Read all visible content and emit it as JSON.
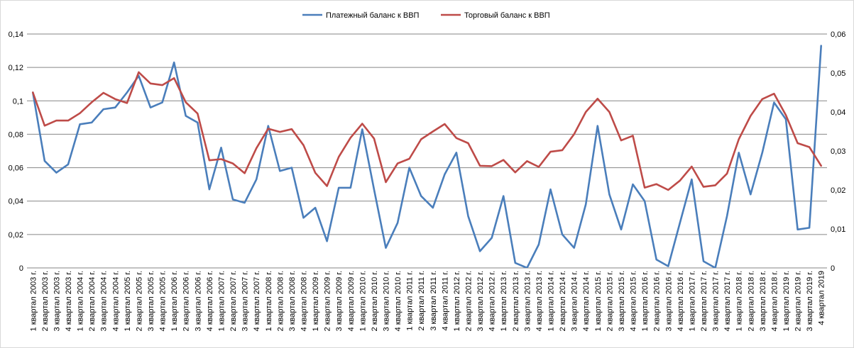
{
  "chart_data": {
    "type": "line",
    "title": "",
    "xlabel": "",
    "ylabel": "",
    "grid": true,
    "legend_position": "top",
    "categories": [
      "1 квартал 2003 г.",
      "2 квартал 2003 г.",
      "3 квартал 2003 г.",
      "4 квартал 2003 г.",
      "1 квартал 2004 г.",
      "2 квартал 2004 г.",
      "3 квартал 2004 г.",
      "4 квартал 2004 г.",
      "1 квартал 2005 г.",
      "2 квартал 2005 г.",
      "3 квартал 2005 г.",
      "4 квартал 2005 г.",
      "1 квартал 2006 г.",
      "2 квартал 2006 г.",
      "3 квартал 2006 г.",
      "4 квартал 2006 г.",
      "1 квартал 2007 г.",
      "2 квартал 2007 г.",
      "3 квартал 2007 г.",
      "4 квартал 2007 г.",
      "1 квартал 2008 г.",
      "2 квартал 2008 г.",
      "3 квартал 2008 г.",
      "4 квартал 2008 г.",
      "1 квартал 2009 г.",
      "2 квартал 2009 г.",
      "3 квартал 2009 г.",
      "4 квартал 2009 г.",
      "1 квартал 2010 г.",
      "2 квартал 2010 г.",
      "3 квартал 2010 г.",
      "4 квартал 2010 г.",
      "1 квартал 2011 г.",
      "2 квартал 2011 г.",
      "3 квартал 2011 г.",
      "4 квартал 2011 г.",
      "1 квартал 2012 г.",
      "2 квартал 2012 г.",
      "3 квартал 2012 г.",
      "4 квартал 2012 г.",
      "1 квартал 2013 г.",
      "2 квартал 2013 г.",
      "3 квартал 2013 г.",
      "4 квартал 2013 г.",
      "1 квартал 2014 г.",
      "2 квартал 2014 г.",
      "3 квартал 2014 г.",
      "4 квартал 2014 г.",
      "1 квартал 2015 г.",
      "2 квартал 2015 г.",
      "3 квартал 2015 г.",
      "4 квартал 2015 г.",
      "1 квартал 2016 г.",
      "2 квартал 2016 г.",
      "3 квартал 2016 г.",
      "4 квартал 2016 г.",
      "1 квартал 2017 г.",
      "2 квартал 2017 г.",
      "3 квартал 2017 г.",
      "4 квартал 2017 г.",
      "1 квартал 2018 г.",
      "2 квартал 2018 г.",
      "3 квартал 2018 г.",
      "4 квартал 2018 г.",
      "1 квартал 2019 г.",
      "2 квартал 2019 г.",
      "3 квартал 2019 г.",
      "4 квартал 2019"
    ],
    "y_left": {
      "min": 0,
      "max": 0.14,
      "ticks": [
        "0",
        "0,02",
        "0,04",
        "0,06",
        "0,08",
        "0,1",
        "0,12",
        "0,14"
      ]
    },
    "y_right": {
      "min": 0,
      "max": 0.06,
      "ticks": [
        "0",
        "0,01",
        "0,02",
        "0,03",
        "0,04",
        "0,05",
        "0,06"
      ]
    },
    "series": [
      {
        "name": "Платежный баланс к ВВП",
        "axis": "left",
        "color": "#4a7ebb",
        "values": [
          0.105,
          0.064,
          0.057,
          0.062,
          0.086,
          0.087,
          0.095,
          0.096,
          0.105,
          0.115,
          0.096,
          0.099,
          0.123,
          0.091,
          0.087,
          0.047,
          0.072,
          0.041,
          0.039,
          0.053,
          0.085,
          0.058,
          0.06,
          0.03,
          0.036,
          0.016,
          0.048,
          0.048,
          0.083,
          0.047,
          0.012,
          0.027,
          0.06,
          0.043,
          0.036,
          0.056,
          0.069,
          0.031,
          0.01,
          0.018,
          0.043,
          0.003,
          -0.001,
          0.014,
          0.047,
          0.02,
          0.012,
          0.038,
          0.085,
          0.044,
          0.023,
          0.05,
          0.04,
          0.005,
          0.001,
          0.027,
          0.053,
          0.004,
          -0.003,
          0.031,
          0.069,
          0.044,
          0.069,
          0.099,
          0.089,
          0.023,
          0.024,
          0.133
        ]
      },
      {
        "name": "Торговый баланс к ВВП",
        "axis": "right",
        "color": "#be4b48",
        "values": [
          0.045,
          0.0365,
          0.0378,
          0.0378,
          0.0397,
          0.0425,
          0.0449,
          0.0433,
          0.0423,
          0.0502,
          0.0473,
          0.0469,
          0.0487,
          0.0425,
          0.0396,
          0.0276,
          0.0279,
          0.0268,
          0.0243,
          0.0307,
          0.0357,
          0.0349,
          0.0356,
          0.0315,
          0.0244,
          0.021,
          0.0285,
          0.0334,
          0.037,
          0.0332,
          0.022,
          0.0268,
          0.028,
          0.033,
          0.035,
          0.0369,
          0.0333,
          0.032,
          0.0262,
          0.0261,
          0.0277,
          0.0245,
          0.0274,
          0.0259,
          0.0298,
          0.0302,
          0.0343,
          0.04,
          0.0434,
          0.04,
          0.0327,
          0.0339,
          0.0206,
          0.0215,
          0.02,
          0.0224,
          0.026,
          0.0208,
          0.0212,
          0.0242,
          0.033,
          0.039,
          0.0433,
          0.0447,
          0.0392,
          0.032,
          0.031,
          0.0262
        ]
      }
    ]
  }
}
